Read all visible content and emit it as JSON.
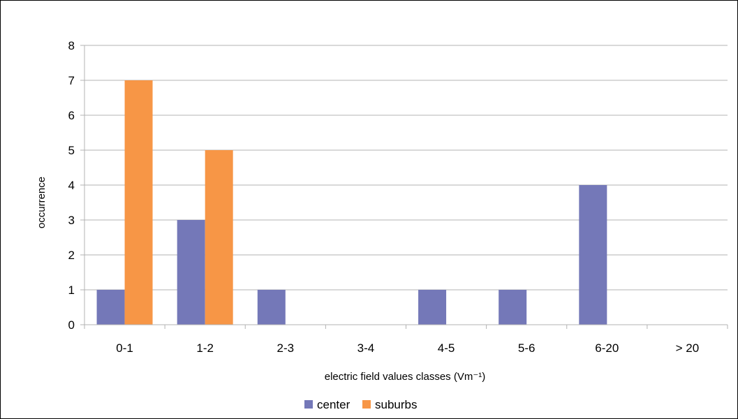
{
  "chart_data": {
    "type": "bar",
    "categories": [
      "0-1",
      "1-2",
      "2-3",
      "3-4",
      "4-5",
      "5-6",
      "6-20",
      "> 20"
    ],
    "series": [
      {
        "name": "center",
        "color": "#7478b8",
        "values": [
          1,
          3,
          1,
          0,
          1,
          1,
          4,
          0
        ]
      },
      {
        "name": "suburbs",
        "color": "#f79646",
        "values": [
          7,
          5,
          0,
          0,
          0,
          0,
          0,
          0
        ]
      }
    ],
    "xlabel": "electric field values classes (Vm⁻¹)",
    "ylabel": "occurrence",
    "ylim": [
      0,
      8
    ],
    "yticks": [
      "0",
      "1",
      "2",
      "3",
      "4",
      "5",
      "6",
      "7",
      "8"
    ],
    "grid": true,
    "legend_position": "bottom"
  }
}
